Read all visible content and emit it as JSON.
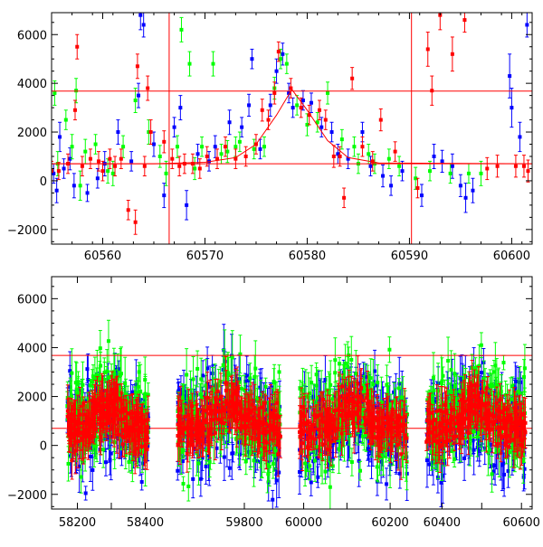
{
  "chart_data": [
    {
      "type": "scatter",
      "panel": "top",
      "title": "",
      "xlabel": "",
      "ylabel": "",
      "xlim": [
        60555,
        60602
      ],
      "ylim": [
        -2600,
        6900
      ],
      "x_ticks": [
        60560,
        60570,
        60580,
        60590,
        60600
      ],
      "y_ticks": [
        -2000,
        0,
        2000,
        4000,
        6000
      ],
      "x_tick_labels": [
        "60560",
        "60570",
        "60580",
        "60590",
        "60600"
      ],
      "y_tick_labels": [
        "−2000",
        "0",
        "2000",
        "4000",
        "6000"
      ],
      "hlines": [
        700,
        3680
      ],
      "vlines": [
        60566.5,
        60590.2
      ],
      "line_color": "#ff0000",
      "series_colors": [
        "#0000ff",
        "#00ff00",
        "#ff0000"
      ],
      "fit_curve": {
        "x": [
          60555,
          60565,
          60570,
          60573,
          60575,
          60577,
          60578.5,
          60580,
          60582,
          60584,
          60587,
          60602
        ],
        "y": [
          700,
          700,
          760,
          950,
          1500,
          2700,
          3750,
          2900,
          1650,
          950,
          730,
          700
        ]
      },
      "series": [
        {
          "color": "#0000ff",
          "points": [
            [
              60555.2,
              300,
              400
            ],
            [
              60555.5,
              -400,
              500
            ],
            [
              60555.8,
              1800,
              600
            ],
            [
              60556.2,
              500,
              400
            ],
            [
              60556.8,
              900,
              450
            ],
            [
              60557.2,
              -200,
              500
            ],
            [
              60558.5,
              -500,
              350
            ],
            [
              60559.5,
              100,
              400
            ],
            [
              60560.2,
              700,
              500
            ],
            [
              60561.5,
              2000,
              500
            ],
            [
              60562.8,
              800,
              400
            ],
            [
              60563.7,
              6800,
              600
            ],
            [
              60564.0,
              6400,
              500
            ],
            [
              60563.5,
              3500,
              500
            ],
            [
              60565.0,
              1500,
              500
            ],
            [
              60566.0,
              -600,
              500
            ],
            [
              60567.0,
              2200,
              400
            ],
            [
              60567.6,
              3000,
              500
            ],
            [
              60568.2,
              -1000,
              600
            ],
            [
              60569.3,
              1100,
              400
            ],
            [
              60570.4,
              800,
              400
            ],
            [
              60571.0,
              1400,
              450
            ],
            [
              60572.4,
              2400,
              500
            ],
            [
              60573.6,
              2200,
              400
            ],
            [
              60574.3,
              3100,
              450
            ],
            [
              60574.6,
              5000,
              400
            ],
            [
              60575.4,
              1300,
              400
            ],
            [
              60576.4,
              3100,
              450
            ],
            [
              60577.0,
              4500,
              500
            ],
            [
              60577.6,
              5200,
              450
            ],
            [
              60578.2,
              3600,
              400
            ],
            [
              60578.6,
              3000,
              400
            ],
            [
              60579.6,
              3300,
              400
            ],
            [
              60580.4,
              3200,
              400
            ],
            [
              60581.4,
              2200,
              400
            ],
            [
              60582.4,
              2000,
              400
            ],
            [
              60583.0,
              1100,
              400
            ],
            [
              60584.0,
              900,
              400
            ],
            [
              60585.4,
              2000,
              400
            ],
            [
              60586.2,
              600,
              400
            ],
            [
              60587.4,
              200,
              450
            ],
            [
              60588.2,
              -200,
              400
            ],
            [
              60589.3,
              400,
              400
            ],
            [
              60591.2,
              -600,
              450
            ],
            [
              60592.4,
              1000,
              500
            ],
            [
              60593.2,
              800,
              450
            ],
            [
              60594.2,
              600,
              500
            ],
            [
              60595.0,
              -200,
              450
            ],
            [
              60595.5,
              -700,
              600
            ],
            [
              60596.2,
              -400,
              500
            ],
            [
              60599.8,
              4300,
              900
            ],
            [
              60600.0,
              3000,
              800
            ],
            [
              60600.8,
              1800,
              600
            ],
            [
              60601.5,
              6400,
              500
            ]
          ]
        },
        {
          "color": "#00ff00",
          "points": [
            [
              60555.3,
              3600,
              500
            ],
            [
              60555.6,
              700,
              500
            ],
            [
              60556.4,
              2500,
              400
            ],
            [
              60557.0,
              1400,
              500
            ],
            [
              60557.4,
              3700,
              500
            ],
            [
              60557.8,
              -200,
              600
            ],
            [
              60558.3,
              1200,
              500
            ],
            [
              60559.3,
              1500,
              400
            ],
            [
              60560.5,
              400,
              500
            ],
            [
              60561.0,
              300,
              500
            ],
            [
              60562.0,
              1400,
              450
            ],
            [
              60563.2,
              3300,
              500
            ],
            [
              60564.5,
              2000,
              500
            ],
            [
              60565.6,
              1000,
              450
            ],
            [
              60566.2,
              300,
              500
            ],
            [
              60567.3,
              1400,
              450
            ],
            [
              60567.7,
              6200,
              500
            ],
            [
              60568.5,
              4800,
              500
            ],
            [
              60569.0,
              500,
              450
            ],
            [
              60569.7,
              1400,
              400
            ],
            [
              60570.8,
              4800,
              500
            ],
            [
              60571.6,
              1100,
              400
            ],
            [
              60572.2,
              1200,
              450
            ],
            [
              60573.0,
              1400,
              400
            ],
            [
              60573.4,
              1600,
              400
            ],
            [
              60574.8,
              1300,
              400
            ],
            [
              60575.8,
              1400,
              400
            ],
            [
              60576.8,
              3800,
              450
            ],
            [
              60577.4,
              5000,
              400
            ],
            [
              60578.0,
              4800,
              400
            ],
            [
              60579.0,
              3100,
              400
            ],
            [
              60580.0,
              2300,
              450
            ],
            [
              60581.0,
              2400,
              400
            ],
            [
              60582.0,
              3600,
              450
            ],
            [
              60583.4,
              1700,
              400
            ],
            [
              60584.6,
              1400,
              400
            ],
            [
              60585.0,
              700,
              400
            ],
            [
              60586.0,
              1100,
              400
            ],
            [
              60586.6,
              700,
              400
            ],
            [
              60588.0,
              900,
              400
            ],
            [
              60589.0,
              600,
              400
            ],
            [
              60590.6,
              100,
              450
            ],
            [
              60592.0,
              400,
              400
            ],
            [
              60594.0,
              300,
              400
            ],
            [
              60595.8,
              300,
              400
            ],
            [
              60597.0,
              300,
              500
            ]
          ]
        },
        {
          "color": "#ff0000",
          "points": [
            [
              60555.0,
              400,
              400
            ],
            [
              60555.7,
              400,
              350
            ],
            [
              60556.6,
              700,
              400
            ],
            [
              60557.3,
              2900,
              400
            ],
            [
              60557.5,
              5500,
              500
            ],
            [
              60558.0,
              600,
              400
            ],
            [
              60558.8,
              900,
              400
            ],
            [
              60559.6,
              800,
              400
            ],
            [
              60560.0,
              400,
              400
            ],
            [
              60560.7,
              900,
              400
            ],
            [
              60561.2,
              600,
              400
            ],
            [
              60561.8,
              900,
              400
            ],
            [
              60562.5,
              -1200,
              400
            ],
            [
              60563.2,
              -1700,
              500
            ],
            [
              60563.4,
              4700,
              500
            ],
            [
              60564.1,
              600,
              400
            ],
            [
              60564.4,
              3800,
              500
            ],
            [
              60564.7,
              2000,
              500
            ],
            [
              60566.0,
              1600,
              450
            ],
            [
              60566.8,
              900,
              400
            ],
            [
              60567.5,
              600,
              400
            ],
            [
              60568.0,
              700,
              400
            ],
            [
              60568.8,
              700,
              400
            ],
            [
              60569.5,
              500,
              400
            ],
            [
              60570.2,
              1000,
              400
            ],
            [
              60571.2,
              900,
              400
            ],
            [
              60572.0,
              1400,
              400
            ],
            [
              60573.0,
              900,
              400
            ],
            [
              60574.0,
              1000,
              400
            ],
            [
              60575.0,
              1500,
              400
            ],
            [
              60575.6,
              2900,
              450
            ],
            [
              60576.2,
              2500,
              400
            ],
            [
              60576.8,
              3600,
              450
            ],
            [
              60577.2,
              5300,
              400
            ],
            [
              60578.4,
              3800,
              400
            ],
            [
              60579.4,
              3000,
              400
            ],
            [
              60580.2,
              2700,
              400
            ],
            [
              60581.2,
              2900,
              400
            ],
            [
              60581.8,
              2500,
              400
            ],
            [
              60582.6,
              1000,
              450
            ],
            [
              60583.2,
              1000,
              400
            ],
            [
              60583.6,
              -700,
              400
            ],
            [
              60584.4,
              4200,
              450
            ],
            [
              60585.4,
              1400,
              400
            ],
            [
              60586.4,
              800,
              400
            ],
            [
              60587.2,
              2500,
              450
            ],
            [
              60588.6,
              1200,
              400
            ],
            [
              60590.8,
              -300,
              400
            ],
            [
              60591.8,
              5400,
              700
            ],
            [
              60592.2,
              3700,
              600
            ],
            [
              60593.0,
              6800,
              600
            ],
            [
              60594.2,
              5200,
              700
            ],
            [
              60595.4,
              6600,
              500
            ],
            [
              60597.6,
              500,
              450
            ],
            [
              60598.6,
              600,
              450
            ],
            [
              60600.4,
              600,
              450
            ],
            [
              60601.2,
              600,
              450
            ],
            [
              60601.6,
              400,
              450
            ]
          ]
        }
      ]
    },
    {
      "type": "scatter",
      "panel": "bottom",
      "title": "",
      "xlabel": "",
      "ylabel": "",
      "xlim_segments": [
        [
          58140,
          58460
        ],
        [
          59640,
          59900
        ],
        [
          59980,
          60250
        ],
        [
          60340,
          60620
        ]
      ],
      "ylim": [
        -2600,
        6900
      ],
      "x_ticks": [
        58200,
        58300,
        58400,
        59800,
        60000,
        60100,
        60200,
        60400,
        60500,
        60600
      ],
      "x_tick_labels": [
        "58200",
        "",
        "58400",
        "59800",
        "60000",
        "",
        "60200",
        "60400",
        "",
        "60600"
      ],
      "y_ticks": [
        -2000,
        0,
        2000,
        4000,
        6000
      ],
      "y_tick_labels": [
        "−2000",
        "0",
        "2000",
        "4000",
        "6000"
      ],
      "hlines": [
        700,
        3680
      ],
      "line_color": "#ff0000",
      "series_colors": [
        "#0000ff",
        "#00ff00",
        "#ff0000"
      ],
      "series": [
        {
          "color": "#0000ff",
          "segments": [
            [
              58170,
              58410
            ],
            [
              59650,
              59880
            ],
            [
              59990,
              60240
            ],
            [
              60360,
              60610
            ]
          ],
          "center": 600,
          "spread": 2600,
          "seed": 11
        },
        {
          "color": "#00ff00",
          "segments": [
            [
              58170,
              58410
            ],
            [
              59650,
              59880
            ],
            [
              59990,
              60240
            ],
            [
              60360,
              60610
            ]
          ],
          "center": 900,
          "spread": 2800,
          "seed": 29
        },
        {
          "color": "#ff0000",
          "segments": [
            [
              58170,
              58410
            ],
            [
              59650,
              59880
            ],
            [
              59990,
              60240
            ],
            [
              60360,
              60610
            ]
          ],
          "center": 700,
          "spread": 1200,
          "seed": 47
        }
      ]
    }
  ]
}
